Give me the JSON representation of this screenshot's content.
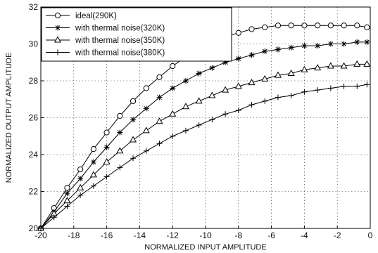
{
  "chart_data": {
    "type": "line",
    "title": "",
    "xlabel": "NORMALIZED INPUT AMPLITUDE",
    "ylabel": "NORMALIZED OUTPUT AMPLITUDE",
    "xlim": [
      -20,
      0
    ],
    "ylim": [
      20,
      32
    ],
    "xticks": [
      -20,
      -18,
      -16,
      -14,
      -12,
      -10,
      -8,
      -6,
      -4,
      -2,
      0
    ],
    "yticks": [
      20,
      22,
      24,
      26,
      28,
      30,
      32
    ],
    "grid": true,
    "legend_position": "top-left",
    "series": [
      {
        "name": "ideal(290K)",
        "marker": "circle",
        "x": [
          -20,
          -19.2,
          -18.4,
          -17.6,
          -16.8,
          -16,
          -15.2,
          -14.4,
          -13.6,
          -12.8,
          -12,
          -11.2,
          -10.4,
          -9.6,
          -8.8,
          -8,
          -7.2,
          -6.4,
          -5.6,
          -4.8,
          -4,
          -3.2,
          -2.4,
          -1.6,
          -0.8,
          -0.2
        ],
        "y": [
          20.0,
          21.1,
          22.2,
          23.2,
          24.3,
          25.2,
          26.1,
          26.9,
          27.6,
          28.2,
          28.8,
          29.3,
          29.7,
          30.1,
          30.4,
          30.6,
          30.8,
          30.9,
          31.0,
          31.0,
          31.0,
          31.0,
          31.0,
          31.0,
          31.0,
          30.9
        ]
      },
      {
        "name": "with thermal noise(320K)",
        "marker": "star",
        "x": [
          -20,
          -19.2,
          -18.4,
          -17.6,
          -16.8,
          -16,
          -15.2,
          -14.4,
          -13.6,
          -12.8,
          -12,
          -11.2,
          -10.4,
          -9.6,
          -8.8,
          -8,
          -7.2,
          -6.4,
          -5.6,
          -4.8,
          -4,
          -3.2,
          -2.4,
          -1.6,
          -0.8,
          -0.2
        ],
        "y": [
          20.0,
          20.9,
          21.9,
          22.7,
          23.6,
          24.4,
          25.2,
          25.9,
          26.5,
          27.1,
          27.6,
          28.0,
          28.4,
          28.7,
          29.0,
          29.2,
          29.4,
          29.6,
          29.7,
          29.8,
          29.9,
          29.9,
          30.0,
          30.0,
          30.1,
          30.1
        ]
      },
      {
        "name": "with thermal noise(350K)",
        "marker": "triangle",
        "x": [
          -20,
          -19.2,
          -18.4,
          -17.6,
          -16.8,
          -16,
          -15.2,
          -14.4,
          -13.6,
          -12.8,
          -12,
          -11.2,
          -10.4,
          -9.6,
          -8.8,
          -8,
          -7.2,
          -6.4,
          -5.6,
          -4.8,
          -4,
          -3.2,
          -2.4,
          -1.6,
          -0.8,
          -0.2
        ],
        "y": [
          20.0,
          20.8,
          21.5,
          22.2,
          22.9,
          23.6,
          24.2,
          24.8,
          25.3,
          25.8,
          26.2,
          26.6,
          26.9,
          27.2,
          27.5,
          27.7,
          27.9,
          28.1,
          28.3,
          28.4,
          28.6,
          28.7,
          28.8,
          28.8,
          28.9,
          28.9
        ]
      },
      {
        "name": "with thermal noise(380K)",
        "marker": "plus",
        "x": [
          -20,
          -19.2,
          -18.4,
          -17.6,
          -16.8,
          -16,
          -15.2,
          -14.4,
          -13.6,
          -12.8,
          -12,
          -11.2,
          -10.4,
          -9.6,
          -8.8,
          -8,
          -7.2,
          -6.4,
          -5.6,
          -4.8,
          -4,
          -3.2,
          -2.4,
          -1.6,
          -0.8,
          -0.2
        ],
        "y": [
          20.0,
          20.6,
          21.2,
          21.8,
          22.3,
          22.8,
          23.3,
          23.8,
          24.2,
          24.6,
          25.0,
          25.3,
          25.6,
          25.9,
          26.2,
          26.4,
          26.7,
          26.9,
          27.1,
          27.2,
          27.4,
          27.5,
          27.6,
          27.7,
          27.7,
          27.8
        ]
      }
    ]
  }
}
